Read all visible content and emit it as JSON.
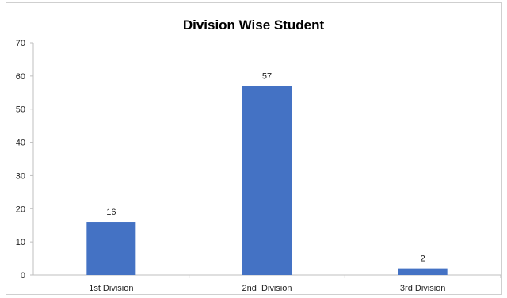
{
  "chart_data": {
    "type": "bar",
    "title": "Division Wise Student",
    "categories": [
      "1st Division",
      "2nd  Division",
      "3rd Division"
    ],
    "values": [
      16,
      57,
      2
    ],
    "data_labels": [
      "16",
      "57",
      "2"
    ],
    "ylim": [
      0,
      70
    ],
    "y_ticks": [
      0,
      10,
      20,
      30,
      40,
      50,
      60,
      70
    ],
    "xlabel": "",
    "ylabel": "",
    "grid": false,
    "legend": "none",
    "bar_color": "#4472C4"
  }
}
